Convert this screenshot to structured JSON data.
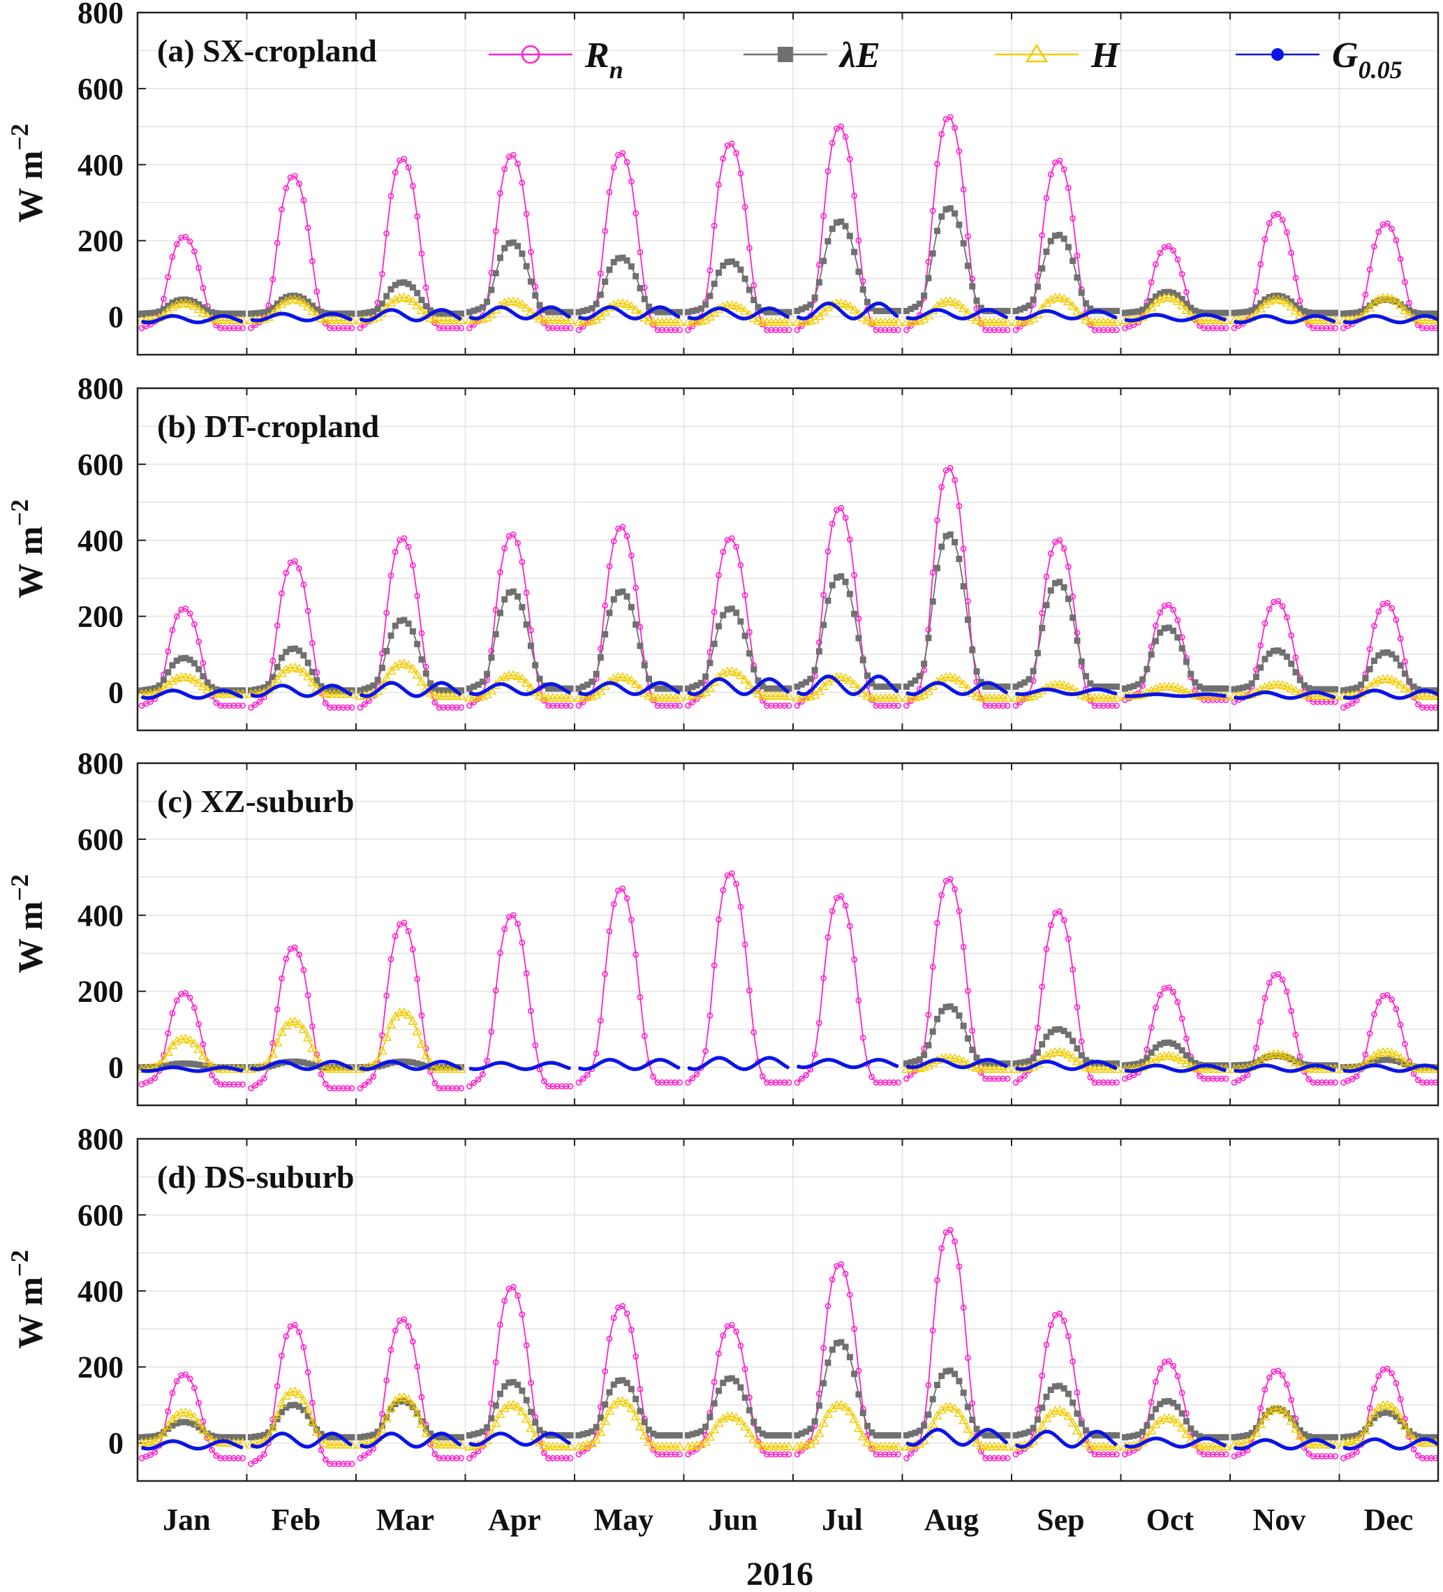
{
  "chart_data": {
    "type": "line",
    "xlabel": "2016",
    "month_labels": [
      "Jan",
      "Feb",
      "Mar",
      "Apr",
      "May",
      "Jun",
      "Jul",
      "Aug",
      "Sep",
      "Oct",
      "Nov",
      "Dec"
    ],
    "ylim": [
      -100,
      800
    ],
    "yticks": [
      0,
      200,
      400,
      600,
      800
    ],
    "ylabel": "W m",
    "ylabel_sup": "−2",
    "grid": true,
    "legend": {
      "placement": "top",
      "entries": [
        {
          "key": "Rn",
          "base": "R",
          "sub": "n",
          "color": "#ff22cc",
          "marker": "circle-open"
        },
        {
          "key": "LE",
          "base": "λE",
          "sub": "",
          "color": "#707070",
          "marker": "square-filled"
        },
        {
          "key": "H",
          "base": "H",
          "sub": "",
          "color": "#f2cc00",
          "marker": "triangle-open"
        },
        {
          "key": "G",
          "base": "G",
          "sub": "0.05",
          "color": "#0a14e6",
          "marker": "dot-filled"
        }
      ]
    },
    "panels": [
      {
        "title": "(a) SX-cropland",
        "series": {
          "Rn": {
            "peak": [
              210,
              370,
              415,
              425,
              430,
              455,
              500,
              525,
              410,
              185,
              270,
              245
            ],
            "night": [
              -30,
              -30,
              -30,
              -30,
              -35,
              -35,
              -35,
              -35,
              -35,
              -30,
              -30,
              -30
            ]
          },
          "LE": {
            "peak": [
              45,
              55,
              90,
              195,
              155,
              145,
              250,
              285,
              215,
              65,
              55,
              45
            ],
            "base": [
              8,
              8,
              8,
              12,
              12,
              12,
              15,
              15,
              15,
              10,
              10,
              8
            ]
          },
          "H": {
            "peak": [
              35,
              45,
              50,
              40,
              35,
              30,
              35,
              40,
              50,
              50,
              45,
              50
            ],
            "base": [
              -10,
              -10,
              -10,
              -10,
              -15,
              -15,
              -15,
              -15,
              -15,
              -10,
              -10,
              -10
            ]
          },
          "G": {
            "peak": [
              2,
              8,
              18,
              25,
              25,
              22,
              35,
              18,
              15,
              5,
              2,
              2
            ],
            "trough": [
              -15,
              -10,
              -10,
              -5,
              -5,
              -5,
              -5,
              -5,
              -5,
              -10,
              -15,
              -15
            ]
          }
        }
      },
      {
        "title": "(b) DT-cropland",
        "series": {
          "Rn": {
            "peak": [
              220,
              345,
              405,
              415,
              435,
              405,
              485,
              590,
              400,
              230,
              240,
              235
            ],
            "night": [
              -35,
              -40,
              -40,
              -35,
              -35,
              -35,
              -35,
              -35,
              -35,
              -20,
              -25,
              -40
            ]
          },
          "LE": {
            "peak": [
              90,
              115,
              190,
              265,
              265,
              220,
              305,
              415,
              290,
              170,
              110,
              105
            ],
            "base": [
              5,
              5,
              5,
              10,
              10,
              10,
              15,
              15,
              15,
              10,
              8,
              5
            ]
          },
          "H": {
            "peak": [
              40,
              65,
              75,
              45,
              40,
              55,
              40,
              40,
              20,
              15,
              20,
              35
            ],
            "base": [
              -5,
              -5,
              -10,
              -15,
              -15,
              -10,
              -15,
              -15,
              -15,
              -10,
              -10,
              -10
            ]
          },
          "G": {
            "peak": [
              5,
              18,
              25,
              22,
              25,
              35,
              42,
              25,
              8,
              -5,
              0,
              5
            ],
            "trough": [
              -15,
              -10,
              -10,
              -5,
              -5,
              -5,
              -5,
              -5,
              -5,
              -10,
              -15,
              -15
            ]
          }
        }
      },
      {
        "title": "(c) XZ-suburb",
        "series": {
          "Rn": {
            "peak": [
              195,
              315,
              380,
              400,
              470,
              510,
              450,
              495,
              410,
              210,
              245,
              190
            ],
            "night": [
              -45,
              -55,
              -55,
              -50,
              -40,
              -40,
              -40,
              -30,
              -40,
              -30,
              -40,
              -40
            ]
          },
          "LE": {
            "peak": [
              10,
              15,
              15,
              null,
              null,
              null,
              null,
              160,
              100,
              65,
              30,
              20
            ],
            "base": [
              0,
              0,
              0,
              null,
              null,
              null,
              null,
              10,
              10,
              5,
              5,
              0
            ]
          },
          "H": {
            "peak": [
              75,
              120,
              145,
              null,
              null,
              null,
              null,
              25,
              40,
              30,
              35,
              40
            ],
            "base": [
              -5,
              -5,
              -5,
              null,
              null,
              null,
              null,
              -5,
              -5,
              -5,
              -5,
              -5
            ]
          },
          "G": {
            "peak": [
              0,
              15,
              15,
              12,
              20,
              25,
              20,
              20,
              15,
              5,
              5,
              5
            ],
            "trough": [
              -10,
              -5,
              -5,
              -5,
              -5,
              -5,
              0,
              0,
              -5,
              -10,
              -10,
              -10
            ]
          }
        }
      },
      {
        "title": "(d) DS-suburb",
        "series": {
          "Rn": {
            "peak": [
              180,
              310,
              325,
              410,
              360,
              310,
              470,
              560,
              340,
              215,
              190,
              195
            ],
            "night": [
              -40,
              -55,
              -40,
              -40,
              -30,
              -30,
              -30,
              -40,
              -30,
              -30,
              -35,
              -40
            ]
          },
          "LE": {
            "peak": [
              55,
              100,
              110,
              160,
              165,
              170,
              265,
              190,
              150,
              110,
              90,
              80
            ],
            "base": [
              15,
              15,
              15,
              20,
              20,
              20,
              20,
              20,
              20,
              15,
              15,
              15
            ]
          },
          "H": {
            "peak": [
              80,
              135,
              120,
              100,
              110,
              70,
              100,
              95,
              85,
              65,
              90,
              100
            ],
            "base": [
              0,
              -5,
              -5,
              -10,
              -10,
              -10,
              -10,
              -10,
              -10,
              -10,
              -5,
              0
            ]
          },
          "G": {
            "peak": [
              5,
              25,
              25,
              25,
              null,
              null,
              null,
              35,
              30,
              12,
              8,
              10
            ],
            "trough": [
              -15,
              -10,
              -10,
              -5,
              null,
              null,
              null,
              -5,
              -10,
              -10,
              -15,
              -15
            ]
          }
        }
      }
    ]
  }
}
